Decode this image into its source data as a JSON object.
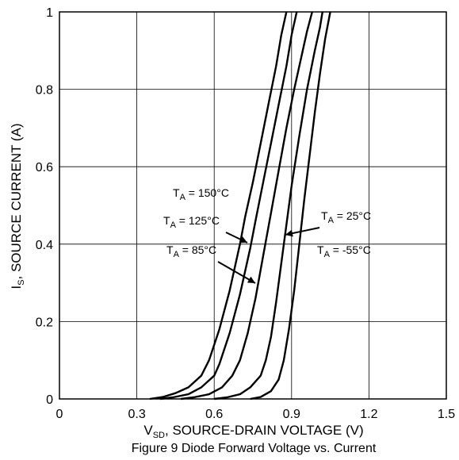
{
  "chart_data": {
    "type": "line",
    "title": "",
    "caption": "Figure 9 Diode Forward Voltage vs. Current",
    "xlabel": {
      "main": "V",
      "sub": "SD",
      "rest": ", SOURCE-DRAIN VOLTAGE (V)"
    },
    "ylabel": {
      "main": "I",
      "sub": "S",
      "rest": ", SOURCE CURRENT (A)"
    },
    "xlim": [
      0,
      1.5
    ],
    "ylim": [
      0,
      1
    ],
    "x_ticks": [
      "0",
      "0.3",
      "0.6",
      "0.9",
      "1.2",
      "1.5"
    ],
    "y_ticks": [
      "0",
      "0.2",
      "0.4",
      "0.6",
      "0.8",
      "1"
    ],
    "grid": true,
    "series": [
      {
        "name": "T_A = 150°C",
        "x": [
          0.35,
          0.4,
          0.45,
          0.5,
          0.55,
          0.58,
          0.62,
          0.66,
          0.7,
          0.72,
          0.75,
          0.78,
          0.81,
          0.84,
          0.86,
          0.88
        ],
        "y": [
          0,
          0.005,
          0.015,
          0.03,
          0.06,
          0.1,
          0.18,
          0.28,
          0.4,
          0.47,
          0.56,
          0.66,
          0.76,
          0.86,
          0.94,
          1.0
        ]
      },
      {
        "name": "T_A = 125°C",
        "x": [
          0.39,
          0.44,
          0.5,
          0.55,
          0.6,
          0.62,
          0.66,
          0.7,
          0.74,
          0.76,
          0.79,
          0.82,
          0.85,
          0.88,
          0.9,
          0.92
        ],
        "y": [
          0,
          0.004,
          0.012,
          0.03,
          0.06,
          0.09,
          0.17,
          0.27,
          0.39,
          0.46,
          0.56,
          0.66,
          0.76,
          0.86,
          0.94,
          1.0
        ]
      },
      {
        "name": "T_A = 85°C",
        "x": [
          0.47,
          0.52,
          0.58,
          0.63,
          0.67,
          0.7,
          0.73,
          0.76,
          0.79,
          0.82,
          0.85,
          0.88,
          0.91,
          0.94,
          0.96,
          0.98
        ],
        "y": [
          0,
          0.004,
          0.012,
          0.03,
          0.06,
          0.1,
          0.17,
          0.26,
          0.37,
          0.48,
          0.59,
          0.7,
          0.8,
          0.89,
          0.95,
          1.0
        ]
      },
      {
        "name": "T_A = 25°C",
        "x": [
          0.6,
          0.65,
          0.7,
          0.74,
          0.78,
          0.8,
          0.82,
          0.84,
          0.86,
          0.88,
          0.9,
          0.93,
          0.96,
          0.99,
          1.01,
          1.02
        ],
        "y": [
          0,
          0.004,
          0.012,
          0.03,
          0.06,
          0.1,
          0.16,
          0.25,
          0.35,
          0.45,
          0.55,
          0.68,
          0.8,
          0.9,
          0.96,
          1.0
        ]
      },
      {
        "name": "T_A = -55°C",
        "x": [
          0.74,
          0.78,
          0.82,
          0.85,
          0.87,
          0.89,
          0.91,
          0.93,
          0.95,
          0.97,
          0.99,
          1.01,
          1.03,
          1.05
        ],
        "y": [
          0,
          0.005,
          0.02,
          0.05,
          0.1,
          0.18,
          0.28,
          0.4,
          0.52,
          0.63,
          0.74,
          0.84,
          0.93,
          1.0
        ]
      }
    ],
    "annotations": [
      {
        "name": "T_A = 150°C",
        "main": "T",
        "sub": "A",
        "rest": " = 150°C"
      },
      {
        "name": "T_A = 125°C",
        "main": "T",
        "sub": "A",
        "rest": " = 125°C"
      },
      {
        "name": "T_A = 85°C",
        "main": "T",
        "sub": "A",
        "rest": " = 85°C"
      },
      {
        "name": "T_A = 25°C",
        "main": "T",
        "sub": "A",
        "rest": " = 25°C"
      },
      {
        "name": "T_A = -55°C",
        "main": "T",
        "sub": "A",
        "rest": " = -55°C"
      }
    ]
  }
}
